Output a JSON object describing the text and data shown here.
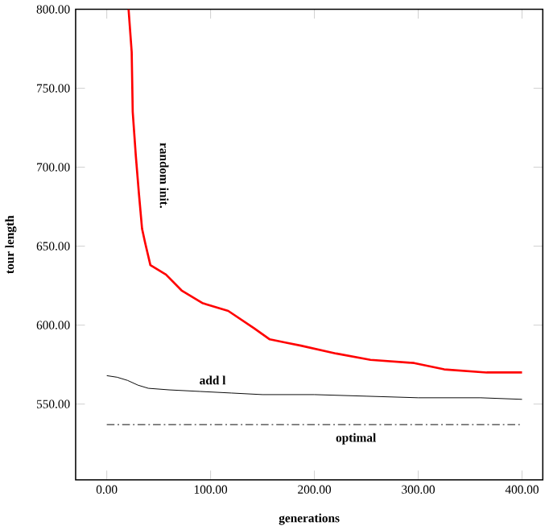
{
  "chart_data": {
    "type": "line",
    "xlabel": "generations",
    "ylabel": "tour length",
    "xlim": [
      -30,
      420
    ],
    "ylim": [
      502,
      800
    ],
    "xticks": [
      {
        "value": 0,
        "label": "0.00"
      },
      {
        "value": 100,
        "label": "100.00"
      },
      {
        "value": 200,
        "label": "200.00"
      },
      {
        "value": 300,
        "label": "300.00"
      },
      {
        "value": 400,
        "label": "400.00"
      }
    ],
    "yticks": [
      {
        "value": 550,
        "label": "550.00"
      },
      {
        "value": 600,
        "label": "600.00"
      },
      {
        "value": 650,
        "label": "650.00"
      },
      {
        "value": 700,
        "label": "700.00"
      },
      {
        "value": 750,
        "label": "750.00"
      },
      {
        "value": 800,
        "label": "800.00"
      }
    ],
    "grid": false,
    "marker": "none",
    "series": [
      {
        "name": "random init.",
        "color": "#ff0000",
        "x": [
          21,
          24,
          25,
          28,
          31,
          34,
          37,
          42,
          57,
          72,
          92,
          117,
          142,
          157,
          172,
          187,
          221,
          254,
          296,
          325,
          366,
          400
        ],
        "values": [
          800,
          773,
          735,
          707,
          683,
          661,
          652,
          638,
          632,
          622,
          614,
          609,
          598,
          591,
          589,
          587,
          582,
          578,
          576,
          572,
          570,
          570
        ]
      },
      {
        "name": "add l",
        "color": "#000000",
        "x": [
          0,
          10,
          20,
          30,
          40,
          60,
          90,
          120,
          150,
          200,
          250,
          300,
          360,
          400
        ],
        "values": [
          568,
          567,
          565,
          562,
          560,
          559,
          558,
          557,
          556,
          556,
          555,
          554,
          554,
          553
        ]
      },
      {
        "name": "optimal",
        "color": "#000000",
        "line_style": "dashdotted",
        "x": [
          0,
          400
        ],
        "values": [
          537,
          537
        ]
      }
    ]
  }
}
